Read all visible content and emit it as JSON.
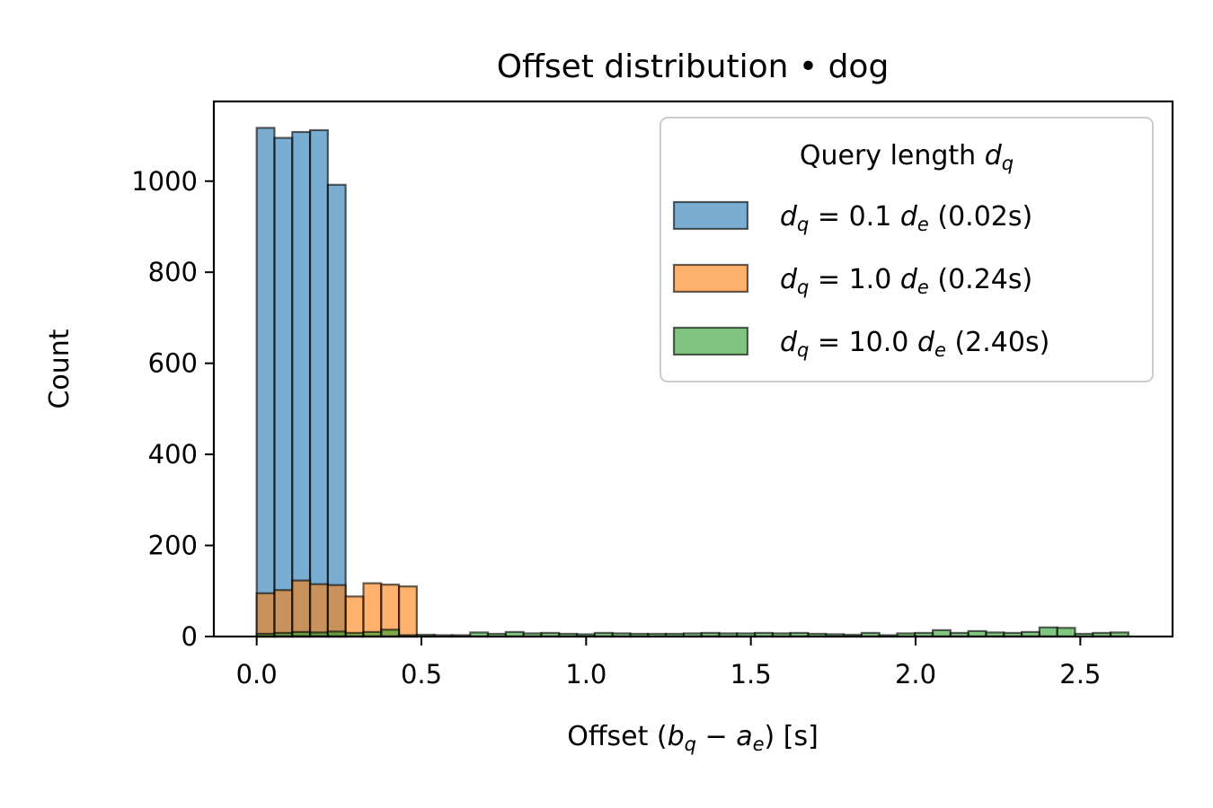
{
  "chart_data": {
    "type": "bar",
    "subtype": "overlaid-histogram",
    "title": "Offset distribution • dog",
    "xlabel": {
      "prefix": "Offset (",
      "math": [
        "b",
        "q",
        " − ",
        "a",
        "e"
      ],
      "suffix": ") [s]"
    },
    "ylabel": "Count",
    "xlim": [
      -0.13,
      2.78
    ],
    "ylim": [
      0,
      1175
    ],
    "xticks": [
      0.0,
      0.5,
      1.0,
      1.5,
      2.0,
      2.5
    ],
    "xtick_labels": [
      "0.0",
      "0.5",
      "1.0",
      "1.5",
      "2.0",
      "2.5"
    ],
    "yticks": [
      0,
      200,
      400,
      600,
      800,
      1000
    ],
    "ytick_labels": [
      "0",
      "200",
      "400",
      "600",
      "800",
      "1000"
    ],
    "grid": false,
    "legend": {
      "position": "top-right",
      "title": "Query length",
      "title_math": "d_q",
      "entries": [
        {
          "pre": "d",
          "sub": "q",
          "mid": " = 0.1 ",
          "pre2": "d",
          "sub2": "e",
          "post": " (0.02s)"
        },
        {
          "pre": "d",
          "sub": "q",
          "mid": " = 1.0 ",
          "pre2": "d",
          "sub2": "e",
          "post": " (0.24s)"
        },
        {
          "pre": "d",
          "sub": "q",
          "mid": " = 10.0 ",
          "pre2": "d",
          "sub2": "e",
          "post": " (2.40s)"
        }
      ]
    },
    "bin_width": 0.054,
    "series": [
      {
        "name": "d_q = 0.1 d_e (0.02s)",
        "color": "#1f77b4",
        "bin_starts": [
          0.0,
          0.054,
          0.108,
          0.162,
          0.216
        ],
        "values": [
          1117,
          1095,
          1108,
          1112,
          992
        ]
      },
      {
        "name": "d_q = 1.0 d_e (0.24s)",
        "color": "#ff7f0e",
        "bin_starts": [
          0.0,
          0.054,
          0.108,
          0.162,
          0.216,
          0.27,
          0.324,
          0.378,
          0.432
        ],
        "values": [
          95,
          102,
          123,
          115,
          113,
          88,
          117,
          114,
          110
        ]
      },
      {
        "name": "d_q = 10.0 d_e (2.40s)",
        "color": "#2ca02c",
        "bin_starts": [
          0.0,
          0.054,
          0.108,
          0.162,
          0.216,
          0.27,
          0.324,
          0.378,
          0.432,
          0.486,
          0.54,
          0.594,
          0.648,
          0.702,
          0.756,
          0.81,
          0.864,
          0.918,
          0.972,
          1.026,
          1.08,
          1.134,
          1.188,
          1.242,
          1.296,
          1.35,
          1.404,
          1.458,
          1.512,
          1.566,
          1.62,
          1.674,
          1.728,
          1.782,
          1.836,
          1.89,
          1.944,
          1.998,
          2.052,
          2.106,
          2.16,
          2.214,
          2.268,
          2.322,
          2.376,
          2.43,
          2.484,
          2.538,
          2.592
        ],
        "values": [
          6,
          8,
          10,
          9,
          11,
          8,
          10,
          15,
          3,
          4,
          3,
          3,
          9,
          6,
          10,
          7,
          8,
          6,
          5,
          8,
          7,
          6,
          6,
          6,
          7,
          8,
          7,
          7,
          8,
          7,
          8,
          6,
          5,
          4,
          8,
          3,
          7,
          8,
          14,
          8,
          12,
          9,
          8,
          10,
          20,
          19,
          6,
          8,
          9
        ]
      }
    ]
  }
}
